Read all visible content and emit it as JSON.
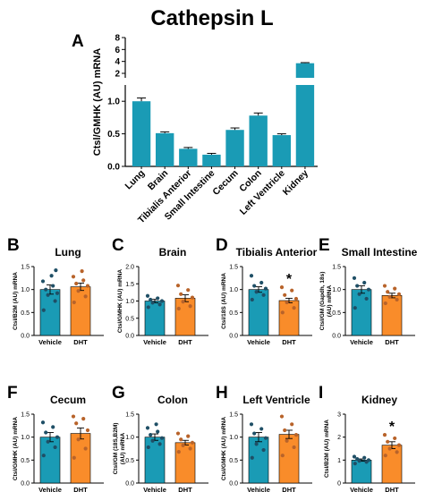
{
  "figure": {
    "title": "Cathepsin L",
    "colors": {
      "vehicle": "#1a9bb5",
      "dht": "#f98c2a",
      "overview": "#1a9bb5",
      "axis": "#000000"
    }
  },
  "chart_data": [
    {
      "type": "bar",
      "panel": "A",
      "title": "",
      "ylabel": "Ctsl/GMHK (AU) mRNA",
      "categories": [
        "Lung",
        "Brain",
        "Tibialis Anterior",
        "Small Intestine",
        "Cecum",
        "Colon",
        "Left Ventricle",
        "Kidney"
      ],
      "values": [
        1.0,
        0.51,
        0.27,
        0.18,
        0.56,
        0.78,
        0.48,
        3.7
      ],
      "errors": [
        0.05,
        0.02,
        0.02,
        0.02,
        0.03,
        0.04,
        0.02,
        0.1
      ],
      "y_axis_break": true,
      "yticks_lower": [
        "0.0",
        "0.5",
        "1.0"
      ],
      "yticks_upper": [
        "2",
        "4",
        "6",
        "8"
      ],
      "ylim_lower": [
        0,
        1.25
      ],
      "ylim_upper": [
        1.25,
        8
      ]
    },
    {
      "type": "bar",
      "panel": "B",
      "title": "Lung",
      "ylabel": "Ctsl/B2M (AU) mRNA",
      "categories": [
        "Vehicle",
        "DHT"
      ],
      "values": [
        1.0,
        1.06
      ],
      "errors": [
        0.1,
        0.08
      ],
      "points": [
        [
          0.55,
          0.75,
          0.88,
          0.92,
          1.0,
          1.08,
          1.18,
          1.3,
          1.42
        ],
        [
          0.72,
          0.85,
          0.97,
          1.08,
          1.13,
          1.2,
          1.28,
          1.4
        ]
      ],
      "ylim": [
        0,
        1.5
      ],
      "yticks": [
        "0.0",
        "0.5",
        "1.0",
        "1.5"
      ],
      "significant": false
    },
    {
      "type": "bar",
      "panel": "C",
      "title": "Brain",
      "ylabel": "Ctsl/GMHK (AU) mRNA",
      "categories": [
        "Vehicle",
        "DHT"
      ],
      "values": [
        1.0,
        1.08
      ],
      "errors": [
        0.05,
        0.1
      ],
      "points": [
        [
          0.82,
          0.9,
          0.95,
          1.0,
          1.04,
          1.08,
          1.15
        ],
        [
          0.78,
          0.85,
          0.98,
          1.1,
          1.2,
          1.32,
          1.45
        ]
      ],
      "ylim": [
        0,
        2.0
      ],
      "yticks": [
        "0.0",
        "0.5",
        "1.0",
        "1.5",
        "2.0"
      ],
      "significant": false
    },
    {
      "type": "bar",
      "panel": "D",
      "title": "Tibialis Anterior",
      "ylabel": "Ctsl/18S (AU) mRNA",
      "categories": [
        "Vehicle",
        "DHT"
      ],
      "values": [
        1.0,
        0.76
      ],
      "errors": [
        0.06,
        0.05
      ],
      "points": [
        [
          0.78,
          0.88,
          0.95,
          1.02,
          1.08,
          1.15,
          1.3
        ],
        [
          0.5,
          0.6,
          0.72,
          0.8,
          0.88,
          0.98,
          1.05
        ]
      ],
      "ylim": [
        0,
        1.5
      ],
      "yticks": [
        "0.0",
        "0.5",
        "1.0",
        "1.5"
      ],
      "significant": true,
      "sig_label": "*"
    },
    {
      "type": "bar",
      "panel": "E",
      "title": "Small Intestine",
      "ylabel": "Ctsl/GM (Gapdh, 18s) (AU) mRNA",
      "categories": [
        "Vehicle",
        "DHT"
      ],
      "values": [
        1.0,
        0.87
      ],
      "errors": [
        0.08,
        0.05
      ],
      "points": [
        [
          0.6,
          0.8,
          0.9,
          1.0,
          1.08,
          1.15,
          1.25
        ],
        [
          0.7,
          0.78,
          0.84,
          0.9,
          0.95,
          1.02,
          1.08
        ]
      ],
      "ylim": [
        0,
        1.5
      ],
      "yticks": [
        "0.0",
        "0.5",
        "1.0",
        "1.5"
      ],
      "significant": false
    },
    {
      "type": "bar",
      "panel": "F",
      "title": "Cecum",
      "ylabel": "Ctsl/GMHK (AU) mRNA",
      "categories": [
        "Vehicle",
        "DHT"
      ],
      "values": [
        1.0,
        1.08
      ],
      "errors": [
        0.1,
        0.12
      ],
      "points": [
        [
          0.6,
          0.78,
          0.9,
          1.0,
          1.1,
          1.22,
          1.32
        ],
        [
          0.55,
          0.75,
          0.95,
          1.15,
          1.3,
          1.4,
          1.45
        ]
      ],
      "ylim": [
        0,
        1.5
      ],
      "yticks": [
        "0.0",
        "0.5",
        "1.0",
        "1.5"
      ],
      "significant": false
    },
    {
      "type": "bar",
      "panel": "G",
      "title": "Colon",
      "ylabel": "Ctsl/GM (18S,B2M) (AU) mRNA",
      "categories": [
        "Vehicle",
        "DHT"
      ],
      "values": [
        1.0,
        0.88
      ],
      "errors": [
        0.07,
        0.05
      ],
      "points": [
        [
          0.78,
          0.85,
          0.92,
          0.98,
          1.05,
          1.12,
          1.2,
          1.28
        ],
        [
          0.68,
          0.75,
          0.82,
          0.88,
          0.95,
          1.02,
          1.08
        ]
      ],
      "ylim": [
        0,
        1.5
      ],
      "yticks": [
        "0.0",
        "0.5",
        "1.0",
        "1.5"
      ],
      "significant": false
    },
    {
      "type": "bar",
      "panel": "H",
      "title": "Left Ventricle",
      "ylabel": "Ctsl/GMHK (AU) mRNA",
      "categories": [
        "Vehicle",
        "DHT"
      ],
      "values": [
        1.0,
        1.06
      ],
      "errors": [
        0.1,
        0.09
      ],
      "points": [
        [
          0.55,
          0.72,
          0.85,
          0.98,
          1.08,
          1.18,
          1.28
        ],
        [
          0.6,
          0.78,
          0.92,
          1.05,
          1.15,
          1.28,
          1.45
        ]
      ],
      "ylim": [
        0,
        1.5
      ],
      "yticks": [
        "0.0",
        "0.5",
        "1.0",
        "1.5"
      ],
      "significant": false
    },
    {
      "type": "bar",
      "panel": "I",
      "title": "Kidney",
      "ylabel": "Ctsl/B2M (AU) mRNA",
      "categories": [
        "Vehicle",
        "DHT"
      ],
      "values": [
        1.0,
        1.65
      ],
      "errors": [
        0.05,
        0.15
      ],
      "points": [
        [
          0.85,
          0.92,
          0.97,
          1.0,
          1.05,
          1.1,
          1.15
        ],
        [
          1.2,
          1.35,
          1.5,
          1.65,
          1.8,
          1.95,
          2.1
        ]
      ],
      "ylim": [
        0,
        3
      ],
      "yticks": [
        "0",
        "1",
        "2",
        "3"
      ],
      "significant": true,
      "sig_label": "*"
    }
  ]
}
